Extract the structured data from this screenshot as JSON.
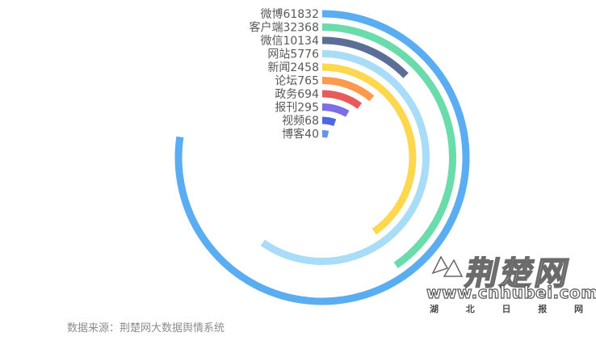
{
  "chart_data": {
    "type": "radial-bar",
    "categories": [
      "微博",
      "客户端",
      "微信",
      "网站",
      "新闻",
      "论坛",
      "政务",
      "报刊",
      "视频",
      "博客"
    ],
    "values": [
      61832,
      32368,
      10134,
      5776,
      2458,
      765,
      694,
      295,
      68,
      40
    ],
    "labels": [
      "微博61832",
      "客户端32368",
      "微信10134",
      "网站5776",
      "新闻2458",
      "论坛765",
      "政务694",
      "报刊295",
      "视频68",
      "博客40"
    ],
    "colors": [
      "#5aadf0",
      "#6adcab",
      "#5a6e96",
      "#a8dcf7",
      "#fdd84f",
      "#fd9a4f",
      "#e95b5b",
      "#7b6ee6",
      "#4d67e2",
      "#6596e6"
    ]
  },
  "source": "数据来源：荆楚网大数据舆情系统",
  "logo": {
    "main": "荆楚网",
    "url": "www.cnhubei.com",
    "sub": [
      "湖",
      "北",
      "日",
      "报",
      "网"
    ]
  }
}
